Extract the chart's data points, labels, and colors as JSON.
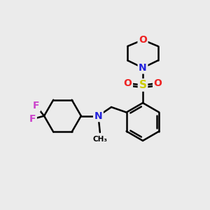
{
  "background_color": "#ebebeb",
  "bond_lw": 1.8,
  "bond_color": "#000000",
  "colors": {
    "F": "#cc44cc",
    "N": "#2222dd",
    "O": "#ee2222",
    "S": "#cccc00",
    "C": "#000000"
  },
  "font_size_atom": 10,
  "font_size_small": 8
}
